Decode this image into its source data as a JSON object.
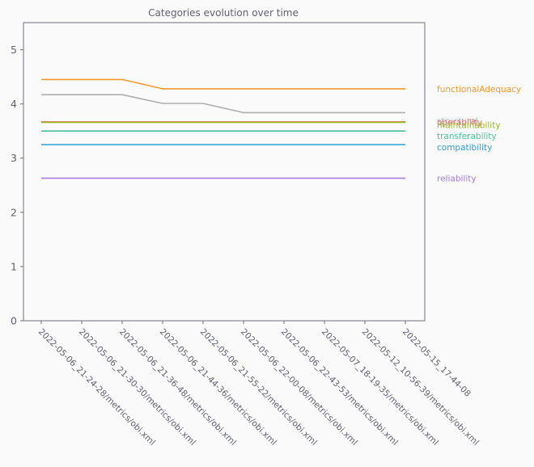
{
  "chart_data": {
    "type": "line",
    "title": "Categories evolution over time",
    "xlabel": "",
    "ylabel": "",
    "ylim": [
      0,
      5.5
    ],
    "yticks": [
      0,
      1,
      2,
      3,
      4,
      5
    ],
    "grid": false,
    "legend": "right, labels at line ends",
    "categories": [
      "2022-05-06_21-24-28/metrics/obi.xml",
      "2022-05-06_21-30-30/metrics/obi.xml",
      "2022-05-06_21-36-48/metrics/obi.xml",
      "2022-05-06_21-44-36/metrics/obi.xml",
      "2022-05-06_21-55-22/metrics/obi.xml",
      "2022-05-06_22-00-08/metrics/obi.xml",
      "2022-05-06_22-43-53/metrics/obi.xml",
      "2022-05-07_18-19-35/metrics/obi.xml",
      "2022-05-12_10-56-39/metrics/obi.xml",
      "2022-05-15_17-44-08"
    ],
    "series": [
      {
        "name": "functionalAdequacy",
        "color": "#f29a2e",
        "values": [
          4.45,
          4.45,
          4.45,
          4.28,
          4.28,
          4.28,
          4.28,
          4.28,
          4.28,
          4.28
        ]
      },
      {
        "name": "structural",
        "color": "#aeaeae",
        "values": [
          4.17,
          4.17,
          4.17,
          4.01,
          4.01,
          3.84,
          3.84,
          3.84,
          3.84,
          3.84
        ]
      },
      {
        "name": "operability",
        "color": "#e86c6c",
        "values": [
          3.67,
          3.67,
          3.67,
          3.67,
          3.67,
          3.67,
          3.67,
          3.67,
          3.67,
          3.67
        ]
      },
      {
        "name": "maintainability",
        "color": "#9cb81f",
        "values": [
          3.66,
          3.66,
          3.66,
          3.66,
          3.66,
          3.66,
          3.66,
          3.66,
          3.66,
          3.66
        ]
      },
      {
        "name": "transferability",
        "color": "#4cc09a",
        "values": [
          3.5,
          3.5,
          3.5,
          3.5,
          3.5,
          3.5,
          3.5,
          3.5,
          3.5,
          3.5
        ]
      },
      {
        "name": "compatibility",
        "color": "#2aa1d8",
        "values": [
          3.25,
          3.25,
          3.25,
          3.25,
          3.25,
          3.25,
          3.25,
          3.25,
          3.25,
          3.25
        ]
      },
      {
        "name": "reliability",
        "color": "#a57ad8",
        "values": [
          2.63,
          2.63,
          2.63,
          2.63,
          2.63,
          2.63,
          2.63,
          2.63,
          2.63,
          2.63
        ]
      }
    ]
  }
}
